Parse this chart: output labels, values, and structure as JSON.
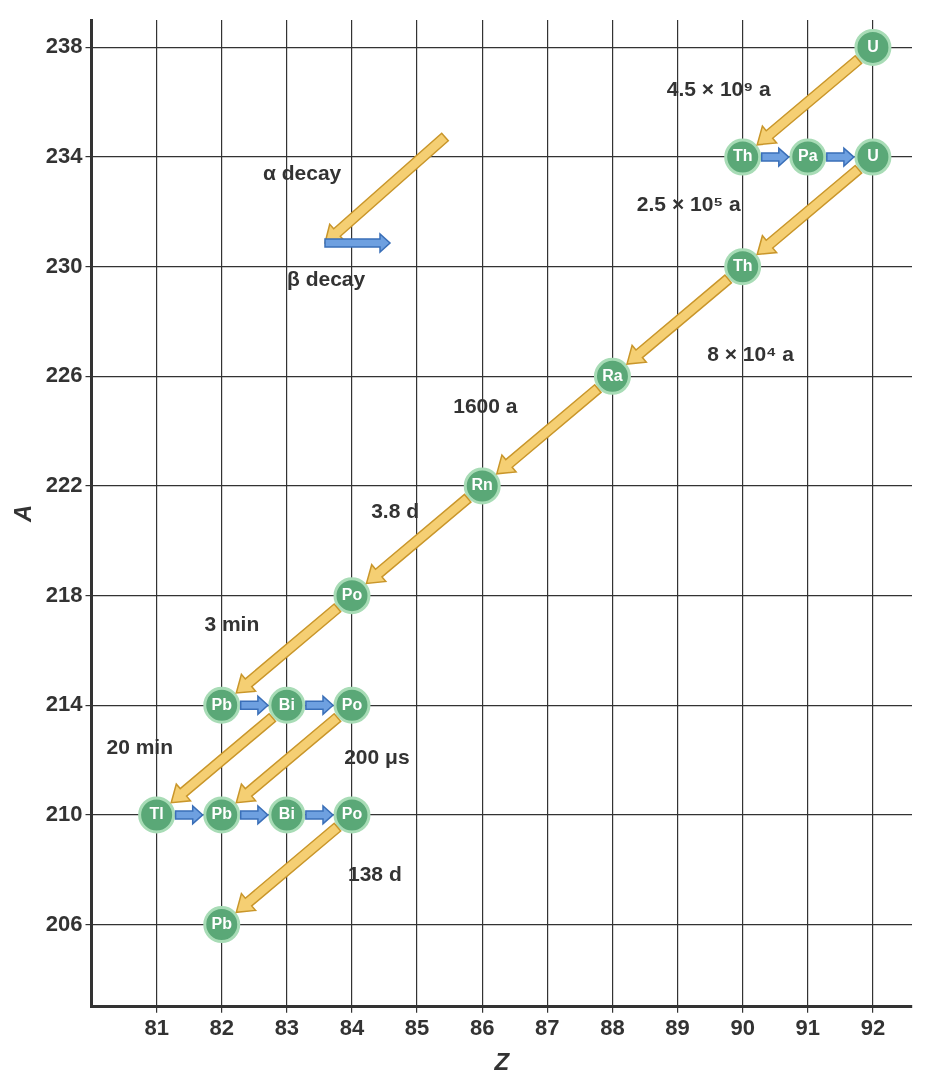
{
  "chart_data": {
    "type": "scatter",
    "xlabel": "Z",
    "ylabel": "A",
    "xlim": [
      80,
      92.6
    ],
    "xticks": [
      81,
      82,
      83,
      84,
      85,
      86,
      87,
      88,
      89,
      90,
      91,
      92
    ],
    "ylim": [
      203,
      239
    ],
    "yticks": [
      206,
      210,
      214,
      218,
      222,
      226,
      230,
      234,
      238
    ],
    "grid": true,
    "legend": false,
    "marker": "circle",
    "series": [
      {
        "color": "#5aa877",
        "x": [
          92,
          90,
          91,
          92,
          90,
          88,
          86,
          84,
          82,
          83,
          84,
          81,
          82,
          83,
          84,
          82
        ],
        "values": [
          238,
          234,
          234,
          234,
          230,
          226,
          222,
          218,
          214,
          214,
          214,
          210,
          210,
          210,
          210,
          206
        ],
        "value_labels": [
          "U",
          "Th",
          "Pa",
          "U",
          "Th",
          "Ra",
          "Rn",
          "Po",
          "Pb",
          "Bi",
          "Po",
          "Tl",
          "Pb",
          "Bi",
          "Po",
          "Pb"
        ]
      }
    ],
    "annotations": [
      "α decay",
      "β decay",
      "4.5 × 10⁹ a",
      "2.5 × 10⁵ a",
      "8 × 10⁴ a",
      "1600 a",
      "3.8 d",
      "3 min",
      "20 min",
      "200 μs",
      "138 d"
    ]
  }
}
